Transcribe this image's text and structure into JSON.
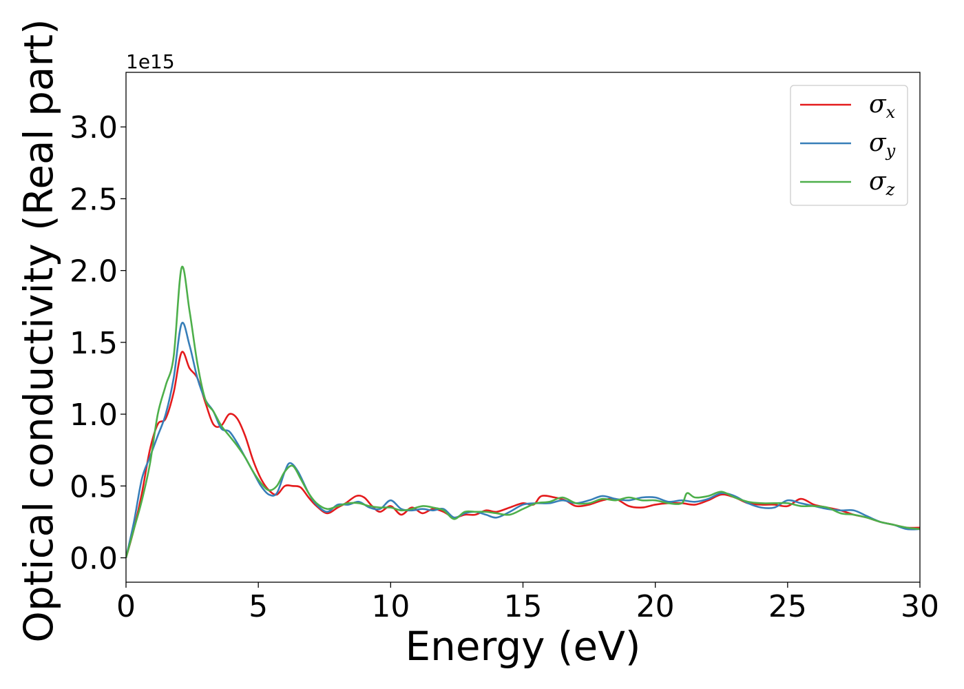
{
  "chart_data": {
    "type": "line",
    "xlabel": "Energy (eV)",
    "ylabel": "Optical conductivity (Real part)",
    "offset_text": "1e15",
    "xlim": [
      0,
      30
    ],
    "ylim": [
      -0.17,
      3.38
    ],
    "x_ticks": [
      0,
      5,
      10,
      15,
      20,
      25,
      30
    ],
    "x_tick_labels": [
      "0",
      "5",
      "10",
      "15",
      "20",
      "25",
      "30"
    ],
    "y_ticks": [
      0.0,
      0.5,
      1.0,
      1.5,
      2.0,
      2.5,
      3.0
    ],
    "y_tick_labels": [
      "0.0",
      "0.5",
      "1.0",
      "1.5",
      "2.0",
      "2.5",
      "3.0"
    ],
    "grid": false,
    "legend_position": "top-right",
    "series": [
      {
        "name": "σx",
        "name_base": "σ",
        "name_sub": "x",
        "color": "#e41a1c",
        "points": [
          [
            0,
            0
          ],
          [
            0.3,
            0.2
          ],
          [
            0.6,
            0.45
          ],
          [
            0.9,
            0.75
          ],
          [
            1.2,
            0.93
          ],
          [
            1.5,
            0.97
          ],
          [
            1.8,
            1.15
          ],
          [
            2.1,
            1.43
          ],
          [
            2.4,
            1.32
          ],
          [
            2.7,
            1.25
          ],
          [
            3.0,
            1.08
          ],
          [
            3.3,
            0.93
          ],
          [
            3.6,
            0.92
          ],
          [
            3.9,
            1.0
          ],
          [
            4.2,
            0.97
          ],
          [
            4.5,
            0.85
          ],
          [
            4.8,
            0.68
          ],
          [
            5.1,
            0.55
          ],
          [
            5.4,
            0.47
          ],
          [
            5.7,
            0.44
          ],
          [
            6.0,
            0.5
          ],
          [
            6.3,
            0.5
          ],
          [
            6.6,
            0.49
          ],
          [
            6.9,
            0.42
          ],
          [
            7.2,
            0.36
          ],
          [
            7.6,
            0.31
          ],
          [
            8.0,
            0.35
          ],
          [
            8.3,
            0.38
          ],
          [
            8.7,
            0.43
          ],
          [
            9.0,
            0.42
          ],
          [
            9.3,
            0.36
          ],
          [
            9.6,
            0.32
          ],
          [
            10.0,
            0.36
          ],
          [
            10.4,
            0.3
          ],
          [
            10.8,
            0.35
          ],
          [
            11.2,
            0.31
          ],
          [
            11.6,
            0.34
          ],
          [
            12.0,
            0.32
          ],
          [
            12.4,
            0.28
          ],
          [
            12.8,
            0.3
          ],
          [
            13.2,
            0.3
          ],
          [
            13.6,
            0.33
          ],
          [
            14.0,
            0.32
          ],
          [
            14.5,
            0.35
          ],
          [
            15.0,
            0.38
          ],
          [
            15.4,
            0.37
          ],
          [
            15.7,
            0.43
          ],
          [
            16.2,
            0.42
          ],
          [
            16.6,
            0.4
          ],
          [
            17.0,
            0.36
          ],
          [
            17.5,
            0.37
          ],
          [
            18.0,
            0.4
          ],
          [
            18.5,
            0.41
          ],
          [
            19.0,
            0.36
          ],
          [
            19.5,
            0.35
          ],
          [
            20.0,
            0.37
          ],
          [
            20.5,
            0.38
          ],
          [
            21.0,
            0.38
          ],
          [
            21.5,
            0.37
          ],
          [
            22.0,
            0.4
          ],
          [
            22.5,
            0.44
          ],
          [
            23.0,
            0.42
          ],
          [
            23.5,
            0.38
          ],
          [
            24.0,
            0.37
          ],
          [
            24.5,
            0.37
          ],
          [
            25.0,
            0.36
          ],
          [
            25.5,
            0.41
          ],
          [
            26.0,
            0.37
          ],
          [
            26.5,
            0.35
          ],
          [
            27.0,
            0.33
          ],
          [
            27.5,
            0.3
          ],
          [
            28.0,
            0.28
          ],
          [
            28.5,
            0.25
          ],
          [
            29.0,
            0.23
          ],
          [
            29.5,
            0.21
          ],
          [
            30.0,
            0.21
          ]
        ]
      },
      {
        "name": "σy",
        "name_base": "σ",
        "name_sub": "y",
        "color": "#377eb8",
        "points": [
          [
            0,
            0
          ],
          [
            0.3,
            0.25
          ],
          [
            0.6,
            0.55
          ],
          [
            0.9,
            0.7
          ],
          [
            1.2,
            0.85
          ],
          [
            1.5,
            1.0
          ],
          [
            1.8,
            1.25
          ],
          [
            2.1,
            1.63
          ],
          [
            2.4,
            1.48
          ],
          [
            2.7,
            1.25
          ],
          [
            3.0,
            1.1
          ],
          [
            3.3,
            1.02
          ],
          [
            3.6,
            0.9
          ],
          [
            3.9,
            0.88
          ],
          [
            4.2,
            0.8
          ],
          [
            4.5,
            0.7
          ],
          [
            4.8,
            0.6
          ],
          [
            5.1,
            0.5
          ],
          [
            5.4,
            0.44
          ],
          [
            5.7,
            0.45
          ],
          [
            6.0,
            0.6
          ],
          [
            6.2,
            0.66
          ],
          [
            6.5,
            0.6
          ],
          [
            6.9,
            0.45
          ],
          [
            7.2,
            0.37
          ],
          [
            7.6,
            0.32
          ],
          [
            8.0,
            0.37
          ],
          [
            8.4,
            0.37
          ],
          [
            8.8,
            0.39
          ],
          [
            9.2,
            0.35
          ],
          [
            9.6,
            0.34
          ],
          [
            10.0,
            0.4
          ],
          [
            10.4,
            0.34
          ],
          [
            10.8,
            0.33
          ],
          [
            11.2,
            0.34
          ],
          [
            11.6,
            0.33
          ],
          [
            12.0,
            0.34
          ],
          [
            12.4,
            0.28
          ],
          [
            12.8,
            0.31
          ],
          [
            13.2,
            0.32
          ],
          [
            13.6,
            0.3
          ],
          [
            14.0,
            0.28
          ],
          [
            14.5,
            0.32
          ],
          [
            15.0,
            0.37
          ],
          [
            15.5,
            0.38
          ],
          [
            16.0,
            0.38
          ],
          [
            16.5,
            0.4
          ],
          [
            17.0,
            0.38
          ],
          [
            17.5,
            0.4
          ],
          [
            18.0,
            0.43
          ],
          [
            18.5,
            0.41
          ],
          [
            19.0,
            0.4
          ],
          [
            19.5,
            0.42
          ],
          [
            20.0,
            0.42
          ],
          [
            20.5,
            0.39
          ],
          [
            21.0,
            0.4
          ],
          [
            21.5,
            0.39
          ],
          [
            22.0,
            0.41
          ],
          [
            22.5,
            0.45
          ],
          [
            23.0,
            0.43
          ],
          [
            23.5,
            0.38
          ],
          [
            24.0,
            0.35
          ],
          [
            24.5,
            0.35
          ],
          [
            25.0,
            0.4
          ],
          [
            25.5,
            0.38
          ],
          [
            26.0,
            0.36
          ],
          [
            26.5,
            0.34
          ],
          [
            27.0,
            0.33
          ],
          [
            27.5,
            0.33
          ],
          [
            28.0,
            0.29
          ],
          [
            28.5,
            0.25
          ],
          [
            29.0,
            0.23
          ],
          [
            29.5,
            0.2
          ],
          [
            30.0,
            0.2
          ]
        ]
      },
      {
        "name": "σz",
        "name_base": "σ",
        "name_sub": "z",
        "color": "#4daf4a",
        "points": [
          [
            0,
            0
          ],
          [
            0.3,
            0.2
          ],
          [
            0.6,
            0.4
          ],
          [
            0.9,
            0.65
          ],
          [
            1.2,
            1.0
          ],
          [
            1.5,
            1.2
          ],
          [
            1.8,
            1.4
          ],
          [
            2.1,
            2.02
          ],
          [
            2.4,
            1.72
          ],
          [
            2.7,
            1.35
          ],
          [
            3.0,
            1.1
          ],
          [
            3.3,
            1.02
          ],
          [
            3.6,
            0.92
          ],
          [
            3.9,
            0.85
          ],
          [
            4.2,
            0.78
          ],
          [
            4.5,
            0.7
          ],
          [
            4.8,
            0.6
          ],
          [
            5.1,
            0.52
          ],
          [
            5.4,
            0.47
          ],
          [
            5.7,
            0.5
          ],
          [
            6.0,
            0.6
          ],
          [
            6.3,
            0.64
          ],
          [
            6.6,
            0.55
          ],
          [
            6.9,
            0.45
          ],
          [
            7.2,
            0.38
          ],
          [
            7.6,
            0.34
          ],
          [
            8.0,
            0.36
          ],
          [
            8.4,
            0.38
          ],
          [
            8.8,
            0.38
          ],
          [
            9.2,
            0.36
          ],
          [
            9.6,
            0.35
          ],
          [
            10.0,
            0.35
          ],
          [
            10.4,
            0.33
          ],
          [
            10.8,
            0.34
          ],
          [
            11.2,
            0.36
          ],
          [
            11.6,
            0.35
          ],
          [
            12.0,
            0.33
          ],
          [
            12.4,
            0.27
          ],
          [
            12.8,
            0.32
          ],
          [
            13.2,
            0.32
          ],
          [
            13.6,
            0.32
          ],
          [
            14.0,
            0.31
          ],
          [
            14.5,
            0.3
          ],
          [
            15.0,
            0.34
          ],
          [
            15.5,
            0.38
          ],
          [
            16.0,
            0.39
          ],
          [
            16.5,
            0.42
          ],
          [
            17.0,
            0.38
          ],
          [
            17.5,
            0.38
          ],
          [
            18.0,
            0.41
          ],
          [
            18.5,
            0.4
          ],
          [
            19.0,
            0.42
          ],
          [
            19.5,
            0.4
          ],
          [
            20.0,
            0.4
          ],
          [
            20.5,
            0.38
          ],
          [
            21.0,
            0.38
          ],
          [
            21.2,
            0.45
          ],
          [
            21.5,
            0.42
          ],
          [
            22.0,
            0.43
          ],
          [
            22.5,
            0.46
          ],
          [
            23.0,
            0.42
          ],
          [
            23.5,
            0.39
          ],
          [
            24.0,
            0.38
          ],
          [
            24.5,
            0.38
          ],
          [
            25.0,
            0.38
          ],
          [
            25.5,
            0.36
          ],
          [
            26.0,
            0.36
          ],
          [
            26.5,
            0.35
          ],
          [
            27.0,
            0.31
          ],
          [
            27.5,
            0.3
          ],
          [
            28.0,
            0.28
          ],
          [
            28.5,
            0.25
          ],
          [
            29.0,
            0.23
          ],
          [
            29.5,
            0.21
          ],
          [
            30.0,
            0.2
          ]
        ]
      }
    ]
  }
}
